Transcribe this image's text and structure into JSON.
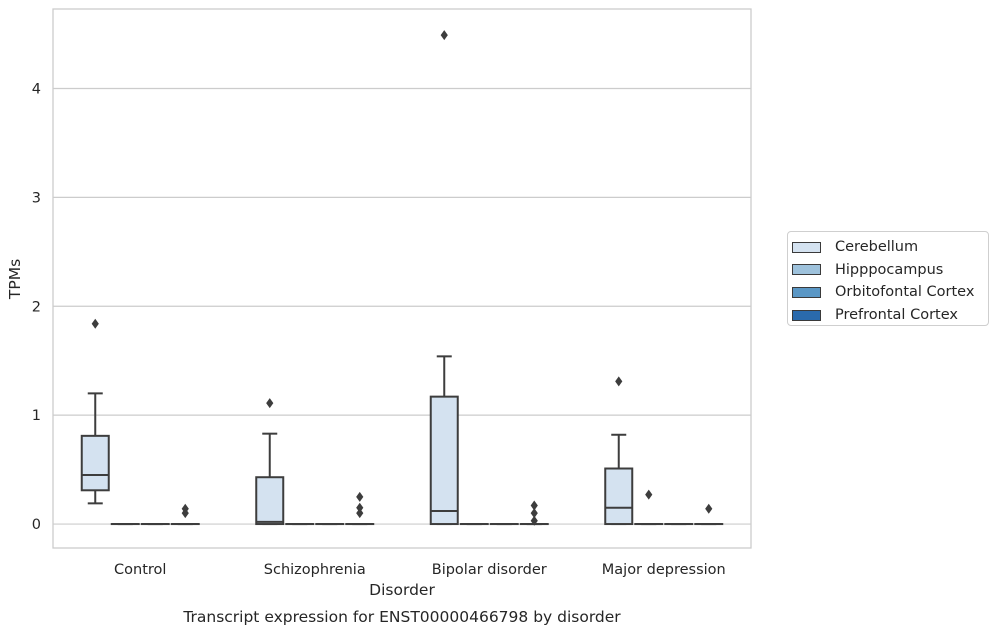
{
  "chart_data": {
    "type": "box",
    "title": "Transcript expression for ENST00000466798 by disorder",
    "xlabel": "Disorder",
    "ylabel": "TPMs",
    "ylim": [
      -0.22,
      4.73
    ],
    "yticks": [
      0,
      1,
      2,
      3,
      4
    ],
    "grid": true,
    "legend_position": "right",
    "categories": [
      "Control",
      "Schizophrenia",
      "Bipolar disorder",
      "Major depression"
    ],
    "series": [
      {
        "name": "Cerebellum",
        "color": "#d4e2f0",
        "boxes": [
          {
            "min": 0.19,
            "q1": 0.31,
            "median": 0.45,
            "q3": 0.81,
            "max": 1.2,
            "outliers": [
              1.84
            ]
          },
          {
            "min": 0.0,
            "q1": 0.0,
            "median": 0.02,
            "q3": 0.43,
            "max": 0.83,
            "outliers": [
              1.11
            ]
          },
          {
            "min": 0.0,
            "q1": 0.0,
            "median": 0.12,
            "q3": 1.17,
            "max": 1.54,
            "outliers": [
              4.49
            ]
          },
          {
            "min": 0.0,
            "q1": 0.0,
            "median": 0.15,
            "q3": 0.51,
            "max": 0.82,
            "outliers": [
              1.31
            ]
          }
        ]
      },
      {
        "name": "Hipppocampus",
        "color": "#9ec2dc",
        "boxes": [
          {
            "min": 0.0,
            "q1": 0.0,
            "median": 0.0,
            "q3": 0.0,
            "max": 0.0,
            "outliers": []
          },
          {
            "min": 0.0,
            "q1": 0.0,
            "median": 0.0,
            "q3": 0.0,
            "max": 0.0,
            "outliers": []
          },
          {
            "min": 0.0,
            "q1": 0.0,
            "median": 0.0,
            "q3": 0.0,
            "max": 0.0,
            "outliers": []
          },
          {
            "min": 0.0,
            "q1": 0.0,
            "median": 0.0,
            "q3": 0.0,
            "max": 0.0,
            "outliers": [
              0.27
            ]
          }
        ]
      },
      {
        "name": "Orbitofontal Cortex",
        "color": "#5a97c5",
        "boxes": [
          {
            "min": 0.0,
            "q1": 0.0,
            "median": 0.0,
            "q3": 0.0,
            "max": 0.0,
            "outliers": []
          },
          {
            "min": 0.0,
            "q1": 0.0,
            "median": 0.0,
            "q3": 0.0,
            "max": 0.0,
            "outliers": []
          },
          {
            "min": 0.0,
            "q1": 0.0,
            "median": 0.0,
            "q3": 0.0,
            "max": 0.0,
            "outliers": []
          },
          {
            "min": 0.0,
            "q1": 0.0,
            "median": 0.0,
            "q3": 0.0,
            "max": 0.0,
            "outliers": []
          }
        ]
      },
      {
        "name": "Prefrontal Cortex",
        "color": "#2a6aac",
        "boxes": [
          {
            "min": 0.0,
            "q1": 0.0,
            "median": 0.0,
            "q3": 0.0,
            "max": 0.0,
            "outliers": [
              0.1,
              0.14
            ]
          },
          {
            "min": 0.0,
            "q1": 0.0,
            "median": 0.0,
            "q3": 0.0,
            "max": 0.0,
            "outliers": [
              0.1,
              0.15,
              0.25
            ]
          },
          {
            "min": 0.0,
            "q1": 0.0,
            "median": 0.0,
            "q3": 0.0,
            "max": 0.0,
            "outliers": [
              0.03,
              0.1,
              0.17
            ]
          },
          {
            "min": 0.0,
            "q1": 0.0,
            "median": 0.0,
            "q3": 0.0,
            "max": 0.0,
            "outliers": [
              0.14
            ]
          }
        ]
      }
    ]
  }
}
